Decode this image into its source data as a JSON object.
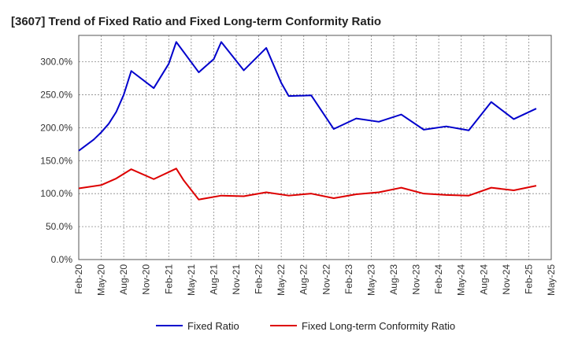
{
  "chart_data": {
    "type": "line",
    "title": "[3607]  Trend of Fixed Ratio and Fixed Long-term Conformity Ratio",
    "xlabel": "",
    "ylabel": "",
    "ylim": [
      0,
      340
    ],
    "y_ticks": [
      0,
      50,
      100,
      150,
      200,
      250,
      300
    ],
    "y_tick_labels": [
      "0.0%",
      "50.0%",
      "100.0%",
      "150.0%",
      "200.0%",
      "250.0%",
      "300.0%"
    ],
    "x_tick_labels": [
      "Feb-20",
      "May-20",
      "Aug-20",
      "Nov-20",
      "Feb-21",
      "May-21",
      "Aug-21",
      "Nov-21",
      "Feb-22",
      "May-22",
      "Aug-22",
      "Nov-22",
      "Feb-23",
      "May-23",
      "Aug-23",
      "Nov-23",
      "Feb-24",
      "May-24",
      "Aug-24",
      "Nov-24",
      "Feb-25",
      "May-25"
    ],
    "x_months": [
      0,
      63
    ],
    "grid": true,
    "legend_position": "bottom",
    "series": [
      {
        "name": "Fixed Ratio",
        "color": "#0000cc",
        "points": [
          [
            0,
            165
          ],
          [
            2,
            182
          ],
          [
            3,
            193
          ],
          [
            4,
            206
          ],
          [
            5,
            224
          ],
          [
            6,
            250
          ],
          [
            7,
            286
          ],
          [
            10,
            260
          ],
          [
            12,
            297
          ],
          [
            13,
            330
          ],
          [
            16,
            284
          ],
          [
            18,
            304
          ],
          [
            19,
            330
          ],
          [
            22,
            287
          ],
          [
            25,
            321
          ],
          [
            27,
            268
          ],
          [
            28,
            248
          ],
          [
            31,
            249
          ],
          [
            34,
            198
          ],
          [
            37,
            214
          ],
          [
            40,
            209
          ],
          [
            43,
            220
          ],
          [
            46,
            197
          ],
          [
            49,
            202
          ],
          [
            52,
            196
          ],
          [
            55,
            239
          ],
          [
            58,
            213
          ],
          [
            61,
            229
          ]
        ]
      },
      {
        "name": "Fixed Long-term Conformity Ratio",
        "color": "#dd0000",
        "points": [
          [
            0,
            108
          ],
          [
            3,
            113
          ],
          [
            5,
            123
          ],
          [
            7,
            137
          ],
          [
            10,
            122
          ],
          [
            13,
            138
          ],
          [
            14,
            120
          ],
          [
            16,
            91
          ],
          [
            19,
            97
          ],
          [
            22,
            96
          ],
          [
            25,
            102
          ],
          [
            28,
            97
          ],
          [
            31,
            100
          ],
          [
            34,
            93
          ],
          [
            37,
            99
          ],
          [
            40,
            102
          ],
          [
            43,
            109
          ],
          [
            46,
            100
          ],
          [
            49,
            98
          ],
          [
            52,
            97
          ],
          [
            55,
            109
          ],
          [
            58,
            105
          ],
          [
            61,
            112
          ]
        ]
      }
    ]
  }
}
